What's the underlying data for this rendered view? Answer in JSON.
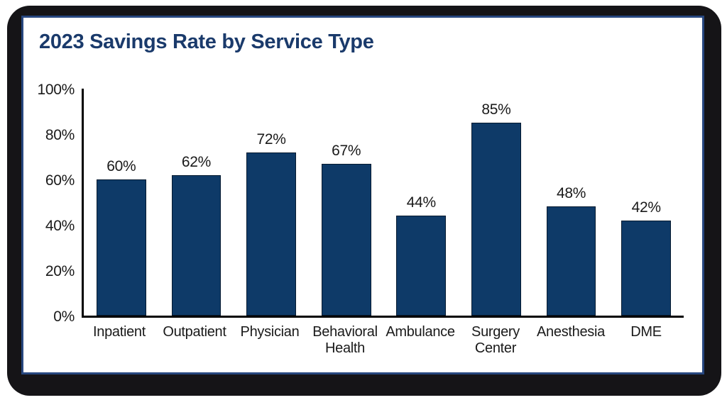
{
  "chart_data": {
    "type": "bar",
    "title": "2023 Savings Rate by Service Type",
    "categories": [
      "Inpatient",
      "Outpatient",
      "Physician",
      "Behavioral Health",
      "Ambulance",
      "Surgery Center",
      "Anesthesia",
      "DME"
    ],
    "values": [
      60,
      62,
      72,
      67,
      44,
      85,
      48,
      42
    ],
    "data_labels": [
      "60%",
      "62%",
      "72%",
      "67%",
      "44%",
      "85%",
      "48%",
      "42%"
    ],
    "y_ticks": [
      0,
      20,
      40,
      60,
      80,
      100
    ],
    "y_tick_labels": [
      "0%",
      "20%",
      "40%",
      "60%",
      "80%",
      "100%"
    ],
    "ylim": [
      0,
      100
    ],
    "xlabel": "",
    "ylabel": "",
    "grid": false,
    "legend": false,
    "colors": {
      "bar_fill": "#0e3a68",
      "bar_border": "#1a1a1a",
      "axis": "#000000",
      "tick_text": "#1a1a1a",
      "title_text": "#1a3a6b",
      "card_border": "#27477f",
      "outer_frame": "#151417",
      "card_background": "#ffffff"
    }
  }
}
